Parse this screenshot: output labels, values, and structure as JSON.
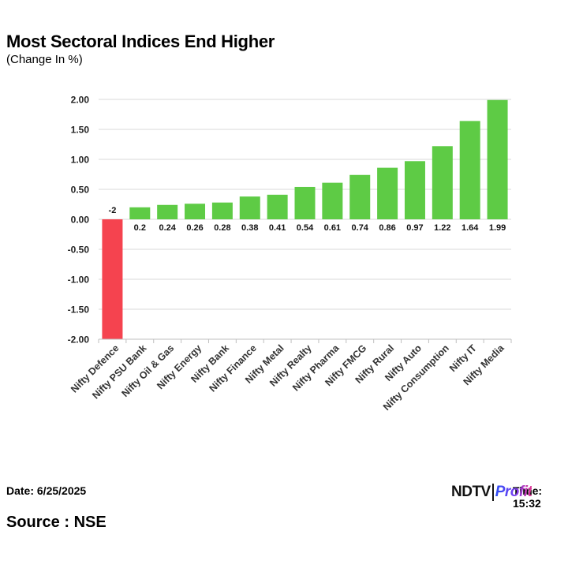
{
  "title": "Most Sectoral Indices End Higher",
  "subtitle": "(Change In %)",
  "footer": {
    "date": "Date: 6/25/2025",
    "time": "Time: 15:32",
    "source": "Source : NSE",
    "logo_left": "NDTV",
    "logo_right": "Profit"
  },
  "colors": {
    "positive": "#5ecb45",
    "negative": "#f5434f",
    "grid": "#d9d9d9"
  },
  "chart_data": {
    "type": "bar",
    "title": "Most Sectoral Indices End Higher",
    "ylabel": "",
    "xlabel": "",
    "ylim": [
      -2.0,
      2.0
    ],
    "yticks": [
      "2.00",
      "1.50",
      "1.00",
      "0.50",
      "0.00",
      "-0.50",
      "-1.00",
      "-1.50",
      "-2.00"
    ],
    "ytick_values": [
      2.0,
      1.5,
      1.0,
      0.5,
      0.0,
      -0.5,
      -1.0,
      -1.5,
      -2.0
    ],
    "grid": true,
    "categories": [
      "Nifty Defence",
      "Nifty PSU Bank",
      "Nifty Oil & Gas",
      "Nifty Energy",
      "Nifty Bank",
      "Nifty Finance",
      "Nifty Metal",
      "Nifty Realty",
      "Nifty Pharma",
      "Nifty FMCG",
      "Nifty Rural",
      "Nifty Auto",
      "Nifty Consumption",
      "Nifty IT",
      "Nifty Media"
    ],
    "values": [
      -2,
      0.2,
      0.24,
      0.26,
      0.28,
      0.38,
      0.41,
      0.54,
      0.61,
      0.74,
      0.86,
      0.97,
      1.22,
      1.64,
      1.99
    ],
    "data_labels": [
      "-2",
      "0.2",
      "0.24",
      "0.26",
      "0.28",
      "0.38",
      "0.41",
      "0.54",
      "0.61",
      "0.74",
      "0.86",
      "0.97",
      "1.22",
      "1.64",
      "1.99"
    ]
  }
}
